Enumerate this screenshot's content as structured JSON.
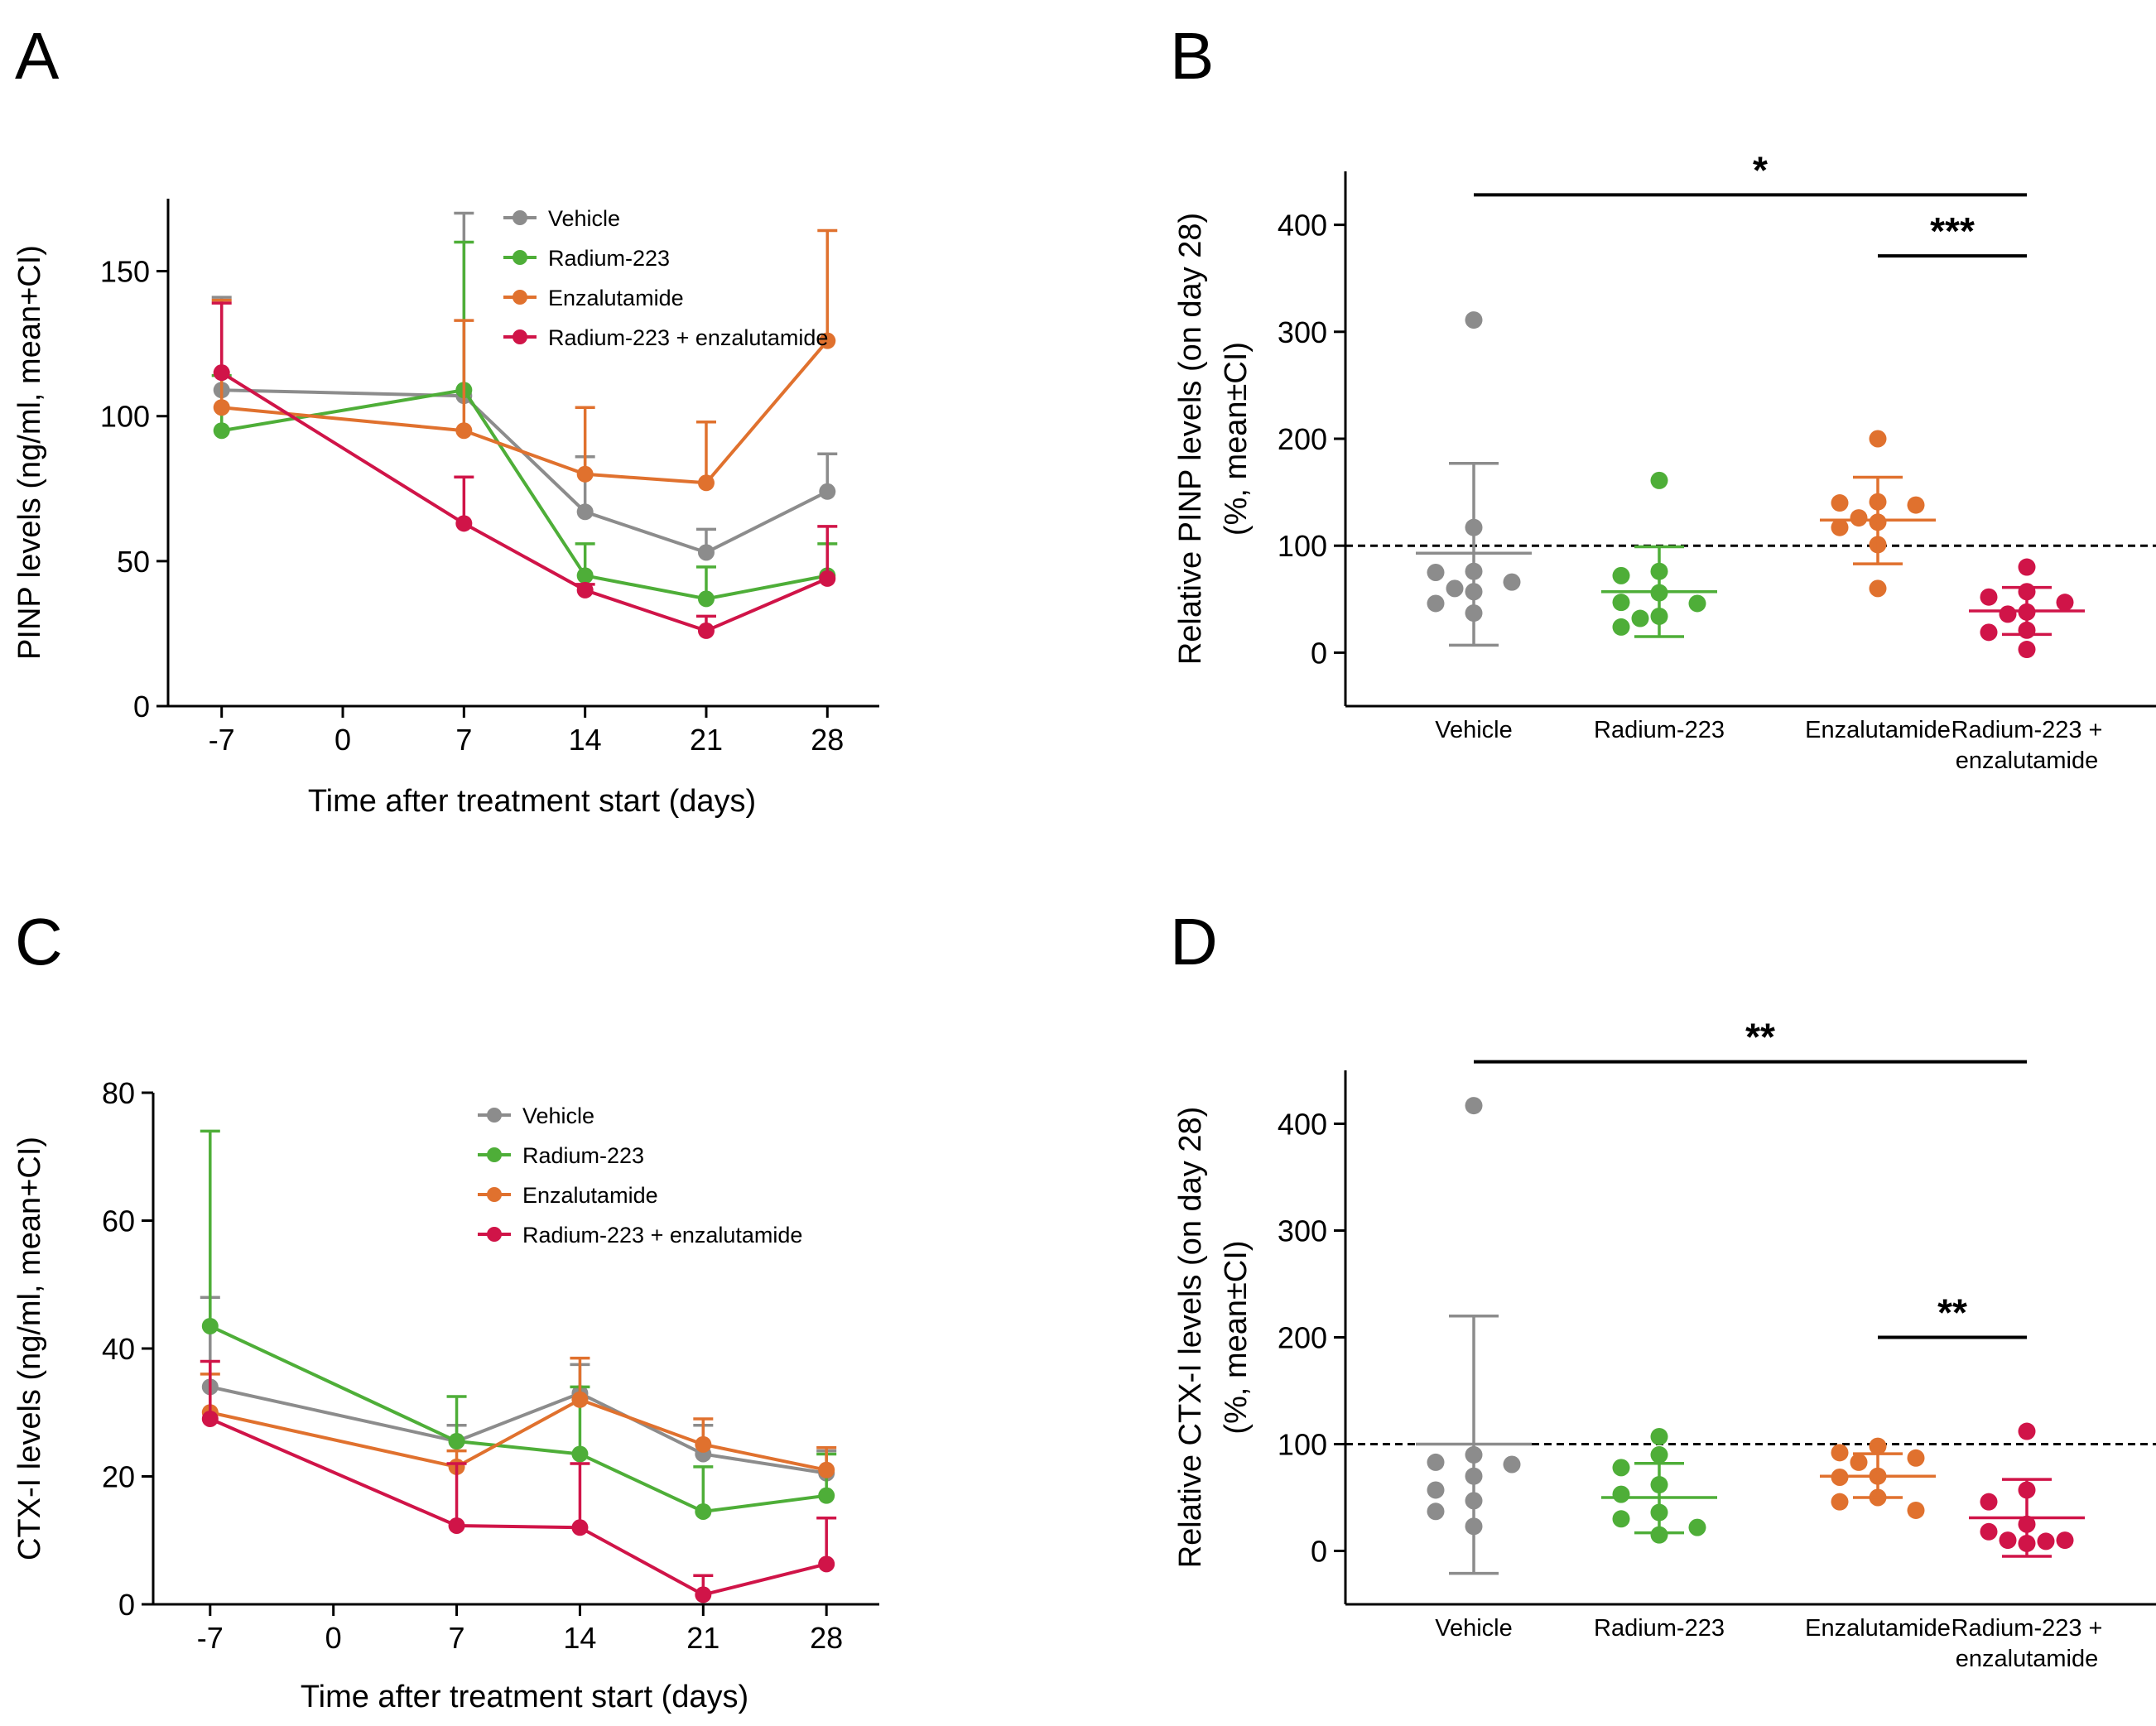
{
  "colors": {
    "Vehicle": "#8c8c8c",
    "Radium-223": "#4eae38",
    "Enzalutamide": "#e0712e",
    "Radium-223 + enzalutamide": "#d01448"
  },
  "chart_data": [
    {
      "panel": "A",
      "type": "line",
      "title": "",
      "xlabel": "Time after treatment start (days)",
      "ylabel": "PINP levels (ng/ml, mean+CI)",
      "xlim": [
        -10,
        31
      ],
      "ylim": [
        0,
        175
      ],
      "xticks": [
        "-7",
        "0",
        "7",
        "14",
        "21",
        "28"
      ],
      "yticks": [
        "0",
        "50",
        "100",
        "150"
      ],
      "x": [
        -7,
        7,
        14,
        21,
        28
      ],
      "series": [
        {
          "name": "Vehicle",
          "values": [
            109,
            107,
            67,
            53,
            74
          ],
          "upper": [
            141,
            170,
            86,
            61,
            87
          ]
        },
        {
          "name": "Radium-223",
          "values": [
            95,
            109,
            45,
            37,
            45
          ],
          "upper": [
            114,
            160,
            56,
            48,
            56
          ]
        },
        {
          "name": "Enzalutamide",
          "values": [
            103,
            95,
            80,
            77,
            126
          ],
          "upper": [
            140,
            133,
            103,
            98,
            164
          ]
        },
        {
          "name": "Radium-223 + enzalutamide",
          "values": [
            115,
            63,
            40,
            26,
            44
          ],
          "upper": [
            139,
            79,
            42,
            31,
            62
          ]
        }
      ],
      "legend": [
        "Vehicle",
        "Radium-223",
        "Enzalutamide",
        "Radium-223 + enzalutamide"
      ]
    },
    {
      "panel": "B",
      "type": "scatter",
      "ylabel": "Relative PINP levels (on day 28)",
      "ylabel2": "(%, mean±CI)",
      "ylim": [
        -50,
        450
      ],
      "yticks": [
        "0",
        "100",
        "200",
        "300",
        "400"
      ],
      "reference": 100,
      "categories": [
        "Vehicle",
        "Radium-223",
        "Enzalutamide",
        "Radium-223 + enzalutamide"
      ],
      "category_labels": [
        [
          "Vehicle"
        ],
        [
          "Radium-223"
        ],
        [
          "Enzalutamide"
        ],
        [
          "Radium-223 +",
          "enzalutamide"
        ]
      ],
      "groups": [
        {
          "name": "Vehicle",
          "mean": 93,
          "ci": [
            7,
            177
          ],
          "points": [
            311,
            117,
            76,
            75,
            66,
            60,
            57,
            46,
            37
          ]
        },
        {
          "name": "Radium-223",
          "mean": 57,
          "ci": [
            15,
            99
          ],
          "points": [
            161,
            76,
            72,
            56,
            47,
            46,
            34,
            32,
            24
          ]
        },
        {
          "name": "Enzalutamide",
          "mean": 124,
          "ci": [
            83,
            164
          ],
          "points": [
            200,
            141,
            140,
            138,
            126,
            122,
            117,
            101,
            60
          ]
        },
        {
          "name": "Radium-223 + enzalutamide",
          "mean": 39,
          "ci": [
            17,
            61
          ],
          "points": [
            80,
            57,
            52,
            47,
            38,
            36,
            21,
            19,
            3
          ]
        }
      ],
      "significance": [
        {
          "from": "Vehicle",
          "to": "Radium-223 + enzalutamide",
          "label": "*",
          "y": 428
        },
        {
          "from": "Enzalutamide",
          "to": "Radium-223 + enzalutamide",
          "label": "***",
          "y": 371
        }
      ]
    },
    {
      "panel": "C",
      "type": "line",
      "title": "",
      "xlabel": "Time after treatment start (days)",
      "ylabel": "CTX-I levels (ng/ml, mean+CI)",
      "xlim": [
        -10,
        31
      ],
      "ylim": [
        0,
        80
      ],
      "xticks": [
        "-7",
        "0",
        "7",
        "14",
        "21",
        "28"
      ],
      "yticks": [
        "0",
        "20",
        "40",
        "60",
        "80"
      ],
      "x": [
        -7,
        7,
        14,
        21,
        28
      ],
      "series": [
        {
          "name": "Vehicle",
          "values": [
            34,
            25.5,
            33,
            23.5,
            20.5
          ],
          "upper": [
            48,
            28,
            37.5,
            28,
            24
          ]
        },
        {
          "name": "Radium-223",
          "values": [
            43.5,
            25.5,
            23.5,
            14.5,
            17
          ],
          "upper": [
            74,
            32.5,
            34,
            21.5,
            23.5
          ]
        },
        {
          "name": "Enzalutamide",
          "values": [
            30,
            21.5,
            32,
            25,
            21
          ],
          "upper": [
            36,
            24,
            38.5,
            29,
            24.5
          ]
        },
        {
          "name": "Radium-223 + enzalutamide",
          "values": [
            29,
            12.3,
            12,
            1.5,
            6.3
          ],
          "upper": [
            38,
            22,
            22,
            4.5,
            13.5
          ]
        }
      ],
      "legend": [
        "Vehicle",
        "Radium-223",
        "Enzalutamide",
        "Radium-223 + enzalutamide"
      ]
    },
    {
      "panel": "D",
      "type": "scatter",
      "ylabel": "Relative CTX-I levels (on day 28)",
      "ylabel2": "(%, mean±CI)",
      "ylim": [
        -50,
        450
      ],
      "yticks": [
        "0",
        "100",
        "200",
        "300",
        "400"
      ],
      "reference": 100,
      "categories": [
        "Vehicle",
        "Radium-223",
        "Enzalutamide",
        "Radium-223 + enzalutamide"
      ],
      "category_labels": [
        [
          "Vehicle"
        ],
        [
          "Radium-223"
        ],
        [
          "Enzalutamide"
        ],
        [
          "Radium-223 +",
          "enzalutamide"
        ]
      ],
      "groups": [
        {
          "name": "Vehicle",
          "mean": 100,
          "ci": [
            -21,
            220
          ],
          "points": [
            417,
            90,
            83,
            81,
            70,
            57,
            47,
            37,
            23
          ]
        },
        {
          "name": "Radium-223",
          "mean": 50,
          "ci": [
            17,
            82
          ],
          "points": [
            107,
            90,
            78,
            62,
            53,
            36,
            30,
            22,
            15
          ]
        },
        {
          "name": "Enzalutamide",
          "mean": 70,
          "ci": [
            50,
            91
          ],
          "points": [
            98,
            92,
            87,
            83,
            70,
            69,
            50,
            46,
            38
          ]
        },
        {
          "name": "Radium-223 + enzalutamide",
          "mean": 31,
          "ci": [
            -5,
            67
          ],
          "points": [
            112,
            57,
            46,
            25,
            18,
            10,
            10,
            9,
            7
          ]
        }
      ],
      "significance": [
        {
          "from": "Vehicle",
          "to": "Radium-223 + enzalutamide",
          "label": "**",
          "y": 458
        },
        {
          "from": "Enzalutamide",
          "to": "Radium-223 + enzalutamide",
          "label": "**",
          "y": 200
        }
      ]
    }
  ]
}
